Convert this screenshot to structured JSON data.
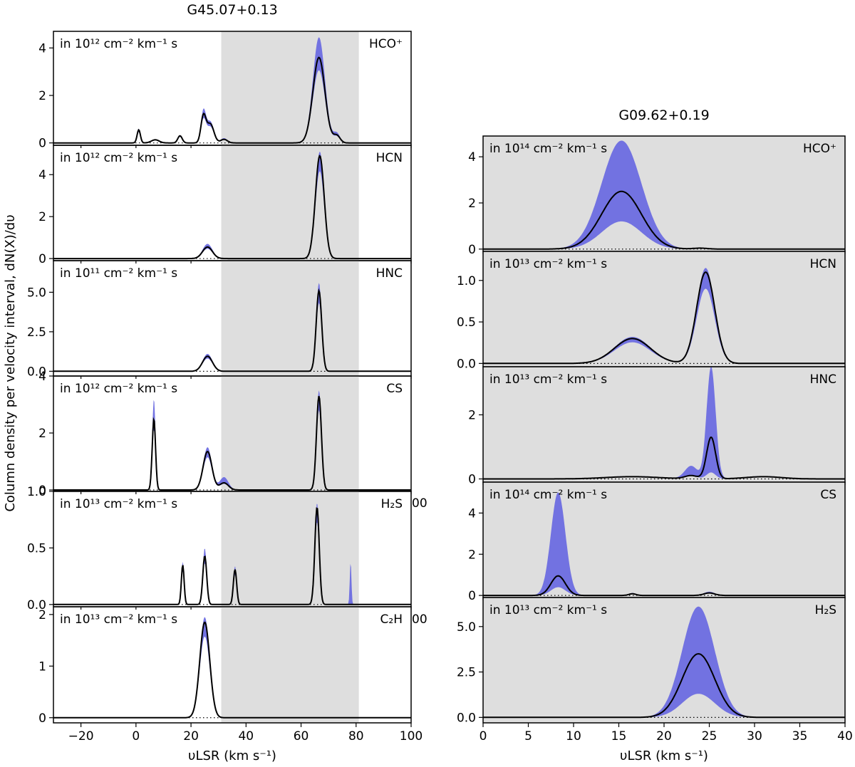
{
  "chart_data": {
    "type": "line",
    "ylabel": "Column density per velocity interval, dN(X)/dυ",
    "stray_tick_labels": [
      "00",
      "00"
    ],
    "colors": {
      "band": "#6b6be0",
      "shade": "#dedede",
      "line": "#000000"
    },
    "figures": [
      {
        "title": "G45.07+0.13",
        "xlabel": "υLSR (km s⁻¹)",
        "xlim": [
          -30,
          100
        ],
        "xticks": [
          -20,
          0,
          20,
          40,
          60,
          80,
          100
        ],
        "shaded_range": [
          31,
          81
        ],
        "panels": [
          {
            "species": "HCO⁺",
            "units": "in 10¹² cm⁻² km⁻¹ s",
            "ylim": [
              -0.1,
              4.7
            ],
            "yticks": [
              0,
              2,
              4
            ],
            "components": [
              {
                "center": 1,
                "sigma": 0.6,
                "peak": 0.55,
                "up": 0.6
              },
              {
                "center": 7,
                "sigma": 1.4,
                "peak": 0.13,
                "up": 0.15
              },
              {
                "center": 16,
                "sigma": 0.8,
                "peak": 0.3,
                "up": 0.33
              },
              {
                "center": 24.5,
                "sigma": 0.9,
                "peak": 1.1,
                "up": 1.3
              },
              {
                "center": 27,
                "sigma": 1.3,
                "peak": 0.8,
                "up": 0.9
              },
              {
                "center": 32,
                "sigma": 1.2,
                "peak": 0.15,
                "up": 0.2
              },
              {
                "center": 66.5,
                "sigma": 2.2,
                "peak": 3.6,
                "up": 4.45
              },
              {
                "center": 73,
                "sigma": 1.2,
                "peak": 0.3,
                "up": 0.4
              }
            ]
          },
          {
            "species": "HCN",
            "units": "in 10¹² cm⁻² km⁻¹ s",
            "ylim": [
              -0.1,
              5.4
            ],
            "yticks": [
              0,
              2,
              4
            ],
            "components": [
              {
                "center": 26,
                "sigma": 1.8,
                "peak": 0.55,
                "up": 0.7
              },
              {
                "center": 66.8,
                "sigma": 1.6,
                "peak": 4.9,
                "up": 5.1
              }
            ]
          },
          {
            "species": "HNC",
            "units": "in 10¹¹ cm⁻² km⁻¹ s",
            "ylim": [
              -0.3,
              7.0
            ],
            "yticks": [
              0.0,
              2.5,
              5.0
            ],
            "components": [
              {
                "center": 26,
                "sigma": 1.8,
                "peak": 0.95,
                "up": 1.1
              },
              {
                "center": 66.5,
                "sigma": 1.0,
                "peak": 5.1,
                "up": 5.6
              }
            ]
          },
          {
            "species": "CS",
            "units": "in 10¹² cm⁻² km⁻¹ s",
            "ylim": [
              -0.05,
              4.0
            ],
            "yticks": [
              0,
              2,
              4
            ],
            "components": [
              {
                "center": 6.5,
                "sigma": 0.6,
                "peak": 2.5,
                "up": 3.2
              },
              {
                "center": 26,
                "sigma": 1.6,
                "peak": 1.35,
                "up": 1.5
              },
              {
                "center": 32,
                "sigma": 1.6,
                "peak": 0.25,
                "up": 0.45
              },
              {
                "center": 66.5,
                "sigma": 0.9,
                "peak": 3.3,
                "up": 3.5
              }
            ]
          },
          {
            "species": "H₂S",
            "units": "in 10¹³ cm⁻² km⁻¹ s",
            "ylim": [
              -0.02,
              1.0
            ],
            "yticks": [
              0.0,
              0.5,
              1.0
            ],
            "components": [
              {
                "center": 17,
                "sigma": 0.5,
                "peak": 0.35,
                "up": 0.38
              },
              {
                "center": 25,
                "sigma": 0.7,
                "peak": 0.43,
                "up": 0.5
              },
              {
                "center": 36,
                "sigma": 0.6,
                "peak": 0.31,
                "up": 0.34
              },
              {
                "center": 65.8,
                "sigma": 0.8,
                "peak": 0.86,
                "up": 0.9
              },
              {
                "center": 78,
                "sigma": 0.3,
                "peak": 0.0,
                "up": 0.38
              }
            ]
          },
          {
            "species": "C₂H",
            "units": "in 10¹³ cm⁻² km⁻¹ s",
            "ylim": [
              -0.1,
              2.15
            ],
            "yticks": [
              0,
              1,
              2
            ],
            "components": [
              {
                "center": 25,
                "sigma": 1.8,
                "peak": 1.85,
                "up": 1.95
              }
            ]
          }
        ]
      },
      {
        "title": "G09.62+0.19",
        "xlabel": "υLSR (km s⁻¹)",
        "xlim": [
          0,
          40
        ],
        "xticks": [
          0,
          5,
          10,
          15,
          20,
          25,
          30,
          35,
          40
        ],
        "shaded_range": [
          0,
          40
        ],
        "panels": [
          {
            "species": "HCO⁺",
            "units": "in 10¹⁴ cm⁻² km⁻¹ s",
            "ylim": [
              -0.1,
              4.9
            ],
            "yticks": [
              0,
              2,
              4
            ],
            "components": [
              {
                "center": 15.3,
                "sigma": 2.2,
                "peak": 2.5,
                "up": 4.7,
                "low": 1.2
              },
              {
                "center": 24,
                "sigma": 0.8,
                "peak": 0.04,
                "up": 0.06
              }
            ]
          },
          {
            "species": "HCN",
            "units": "in 10¹³ cm⁻² km⁻¹ s",
            "ylim": [
              -0.04,
              1.35
            ],
            "yticks": [
              0.0,
              0.5,
              1.0
            ],
            "components": [
              {
                "center": 16.5,
                "sigma": 2.0,
                "peak": 0.3,
                "up": 0.32
              },
              {
                "center": 24.6,
                "sigma": 1.0,
                "peak": 1.1,
                "up": 1.15,
                "low": 0.9
              }
            ]
          },
          {
            "species": "HNC",
            "units": "in 10¹³ cm⁻² km⁻¹ s",
            "ylim": [
              -0.1,
              3.5
            ],
            "yticks": [
              0,
              2
            ],
            "components": [
              {
                "center": 16.5,
                "sigma": 3.0,
                "peak": 0.07,
                "up": 0.09
              },
              {
                "center": 25.2,
                "sigma": 0.5,
                "peak": 1.3,
                "up": 3.5,
                "low": 0.2
              },
              {
                "center": 23,
                "sigma": 0.7,
                "peak": 0.1,
                "up": 0.4
              },
              {
                "center": 31,
                "sigma": 2.0,
                "peak": 0.07,
                "up": 0.09
              }
            ]
          },
          {
            "species": "CS",
            "units": "in 10¹⁴ cm⁻² km⁻¹ s",
            "ylim": [
              -0.1,
              5.5
            ],
            "yticks": [
              0,
              2,
              4
            ],
            "components": [
              {
                "center": 8.3,
                "sigma": 0.8,
                "peak": 0.95,
                "up": 5.0,
                "low": 0.4
              },
              {
                "center": 16.5,
                "sigma": 0.4,
                "peak": 0.08,
                "up": 0.12
              },
              {
                "center": 25,
                "sigma": 0.6,
                "peak": 0.12,
                "up": 0.18
              }
            ]
          },
          {
            "species": "H₂S",
            "units": "in 10¹³ cm⁻² km⁻¹ s",
            "ylim": [
              -0.3,
              6.6
            ],
            "yticks": [
              0.0,
              2.5,
              5.0
            ],
            "components": [
              {
                "center": 23.8,
                "sigma": 1.8,
                "peak": 3.5,
                "up": 6.1,
                "low": 1.3
              }
            ]
          }
        ]
      }
    ]
  }
}
